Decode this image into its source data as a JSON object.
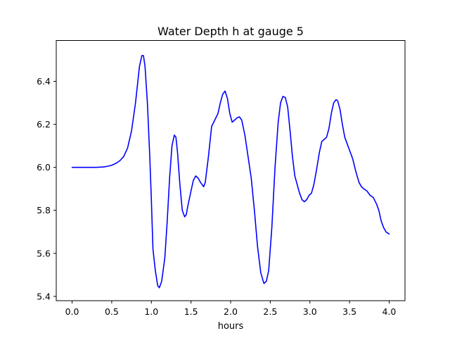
{
  "chart_data": {
    "type": "line",
    "title": "Water Depth h at gauge 5",
    "xlabel": "hours",
    "ylabel": "",
    "xlim": [
      -0.2,
      4.2
    ],
    "ylim": [
      5.38,
      6.59
    ],
    "x_ticks": [
      0.0,
      0.5,
      1.0,
      1.5,
      2.0,
      2.5,
      3.0,
      3.5,
      4.0
    ],
    "x_tick_labels": [
      "0.0",
      "0.5",
      "1.0",
      "1.5",
      "2.0",
      "2.5",
      "3.0",
      "3.5",
      "4.0"
    ],
    "y_ticks": [
      5.4,
      5.6,
      5.8,
      6.0,
      6.2,
      6.4
    ],
    "y_tick_labels": [
      "5.4",
      "5.6",
      "5.8",
      "6.0",
      "6.2",
      "6.4"
    ],
    "grid": false,
    "series": [
      {
        "name": "h",
        "color": "#0000ff",
        "x": [
          0.0,
          0.1,
          0.2,
          0.3,
          0.4,
          0.45,
          0.5,
          0.55,
          0.6,
          0.65,
          0.7,
          0.75,
          0.8,
          0.85,
          0.88,
          0.9,
          0.92,
          0.95,
          0.98,
          1.0,
          1.02,
          1.05,
          1.08,
          1.1,
          1.13,
          1.17,
          1.2,
          1.23,
          1.26,
          1.29,
          1.31,
          1.33,
          1.36,
          1.39,
          1.42,
          1.44,
          1.46,
          1.5,
          1.53,
          1.56,
          1.59,
          1.62,
          1.66,
          1.68,
          1.72,
          1.76,
          1.8,
          1.84,
          1.87,
          1.9,
          1.93,
          1.96,
          1.99,
          2.02,
          2.05,
          2.08,
          2.11,
          2.14,
          2.18,
          2.22,
          2.26,
          2.3,
          2.34,
          2.38,
          2.42,
          2.45,
          2.48,
          2.52,
          2.56,
          2.6,
          2.63,
          2.66,
          2.69,
          2.72,
          2.75,
          2.78,
          2.81,
          2.84,
          2.87,
          2.9,
          2.93,
          2.96,
          2.99,
          3.02,
          3.05,
          3.08,
          3.12,
          3.15,
          3.18,
          3.21,
          3.24,
          3.27,
          3.3,
          3.33,
          3.35,
          3.38,
          3.41,
          3.44,
          3.47,
          3.5,
          3.54,
          3.58,
          3.62,
          3.65,
          3.68,
          3.72,
          3.76,
          3.8,
          3.84,
          3.87,
          3.9,
          3.93,
          3.96,
          4.0
        ],
        "values": [
          6.0,
          6.0,
          6.0,
          6.0,
          6.002,
          6.005,
          6.01,
          6.018,
          6.03,
          6.05,
          6.09,
          6.17,
          6.3,
          6.47,
          6.52,
          6.52,
          6.47,
          6.3,
          6.05,
          5.85,
          5.62,
          5.52,
          5.45,
          5.44,
          5.47,
          5.58,
          5.75,
          5.95,
          6.1,
          6.15,
          6.14,
          6.07,
          5.92,
          5.8,
          5.77,
          5.78,
          5.82,
          5.89,
          5.94,
          5.96,
          5.95,
          5.93,
          5.91,
          5.93,
          6.05,
          6.19,
          6.22,
          6.25,
          6.3,
          6.34,
          6.355,
          6.32,
          6.25,
          6.21,
          6.22,
          6.23,
          6.235,
          6.22,
          6.15,
          6.05,
          5.95,
          5.8,
          5.63,
          5.51,
          5.46,
          5.47,
          5.52,
          5.72,
          6.0,
          6.21,
          6.3,
          6.33,
          6.325,
          6.28,
          6.17,
          6.05,
          5.96,
          5.92,
          5.88,
          5.85,
          5.84,
          5.85,
          5.87,
          5.88,
          5.92,
          5.98,
          6.07,
          6.12,
          6.13,
          6.14,
          6.18,
          6.25,
          6.3,
          6.315,
          6.31,
          6.27,
          6.2,
          6.14,
          6.11,
          6.08,
          6.04,
          5.98,
          5.93,
          5.91,
          5.9,
          5.89,
          5.87,
          5.86,
          5.83,
          5.8,
          5.75,
          5.72,
          5.7,
          5.69
        ]
      }
    ]
  }
}
